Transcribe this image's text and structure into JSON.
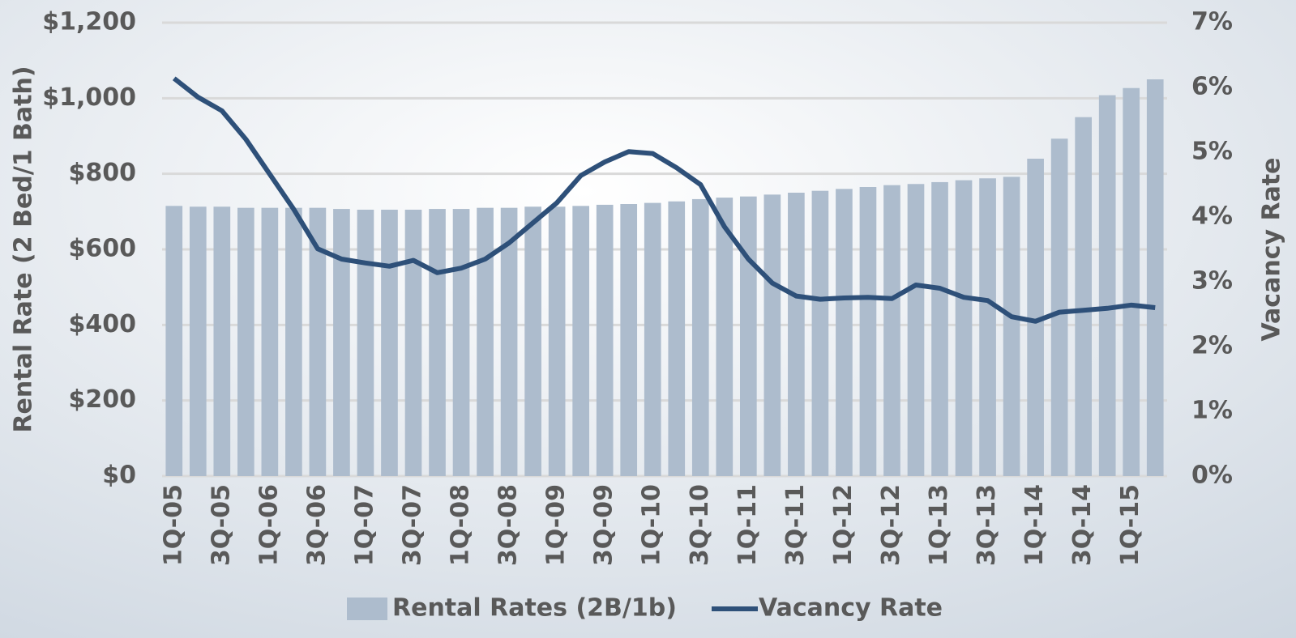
{
  "chart_data": {
    "type": "bar_line",
    "categories": [
      "1Q-05",
      null,
      "3Q-05",
      null,
      "1Q-06",
      null,
      "3Q-06",
      null,
      "1Q-07",
      null,
      "3Q-07",
      null,
      "1Q-08",
      null,
      "3Q-08",
      null,
      "1Q-09",
      null,
      "3Q-09",
      null,
      "1Q-10",
      null,
      "3Q-10",
      null,
      "1Q-11",
      null,
      "3Q-11",
      null,
      "1Q-12",
      null,
      "3Q-12",
      null,
      "1Q-13",
      null,
      "3Q-13",
      null,
      "1Q-14",
      null,
      "3Q-14",
      null,
      "1Q-15",
      null
    ],
    "series": [
      {
        "name": "Rental Rates (2B/1b)",
        "color": "#adbccd",
        "axis": "y",
        "values": [
          715,
          713,
          713,
          710,
          710,
          710,
          710,
          707,
          705,
          705,
          705,
          707,
          707,
          710,
          710,
          713,
          713,
          715,
          718,
          720,
          723,
          727,
          733,
          737,
          740,
          745,
          750,
          755,
          760,
          765,
          770,
          773,
          778,
          783,
          788,
          792,
          840,
          893,
          950,
          1008,
          1027,
          1050
        ]
      },
      {
        "name": "Vacancy Rate",
        "color": "#2e5079",
        "axis": "y2",
        "values": [
          6.14,
          5.85,
          5.64,
          5.2,
          4.66,
          4.12,
          3.51,
          3.35,
          3.29,
          3.24,
          3.33,
          3.14,
          3.21,
          3.35,
          3.6,
          3.91,
          4.22,
          4.64,
          4.85,
          5.01,
          4.98,
          4.76,
          4.5,
          3.85,
          3.35,
          2.98,
          2.78,
          2.73,
          2.75,
          2.76,
          2.74,
          2.95,
          2.9,
          2.76,
          2.71,
          2.46,
          2.39,
          2.53,
          2.56,
          2.59,
          2.64,
          2.6
        ]
      }
    ],
    "y_label": "Rental Rate (2 Bed/1 Bath)",
    "y2_label": "Vacancy Rate",
    "ylim": [
      0,
      1200
    ],
    "yticks": [
      {
        "value": 0,
        "label": "$0"
      },
      {
        "value": 200,
        "label": "$200"
      },
      {
        "value": 400,
        "label": "$400"
      },
      {
        "value": 600,
        "label": "$600"
      },
      {
        "value": 800,
        "label": "$800"
      },
      {
        "value": 1000,
        "label": "$1,000"
      },
      {
        "value": 1200,
        "label": "$1,200"
      }
    ],
    "y2lim": [
      0,
      7
    ],
    "y2ticks": [
      {
        "value": 0,
        "label": "0%"
      },
      {
        "value": 1,
        "label": "1%"
      },
      {
        "value": 2,
        "label": "2%"
      },
      {
        "value": 3,
        "label": "3%"
      },
      {
        "value": 4,
        "label": "4%"
      },
      {
        "value": 5,
        "label": "5%"
      },
      {
        "value": 6,
        "label": "6%"
      },
      {
        "value": 7,
        "label": "7%"
      }
    ],
    "grid": true,
    "legend": "bottom"
  }
}
